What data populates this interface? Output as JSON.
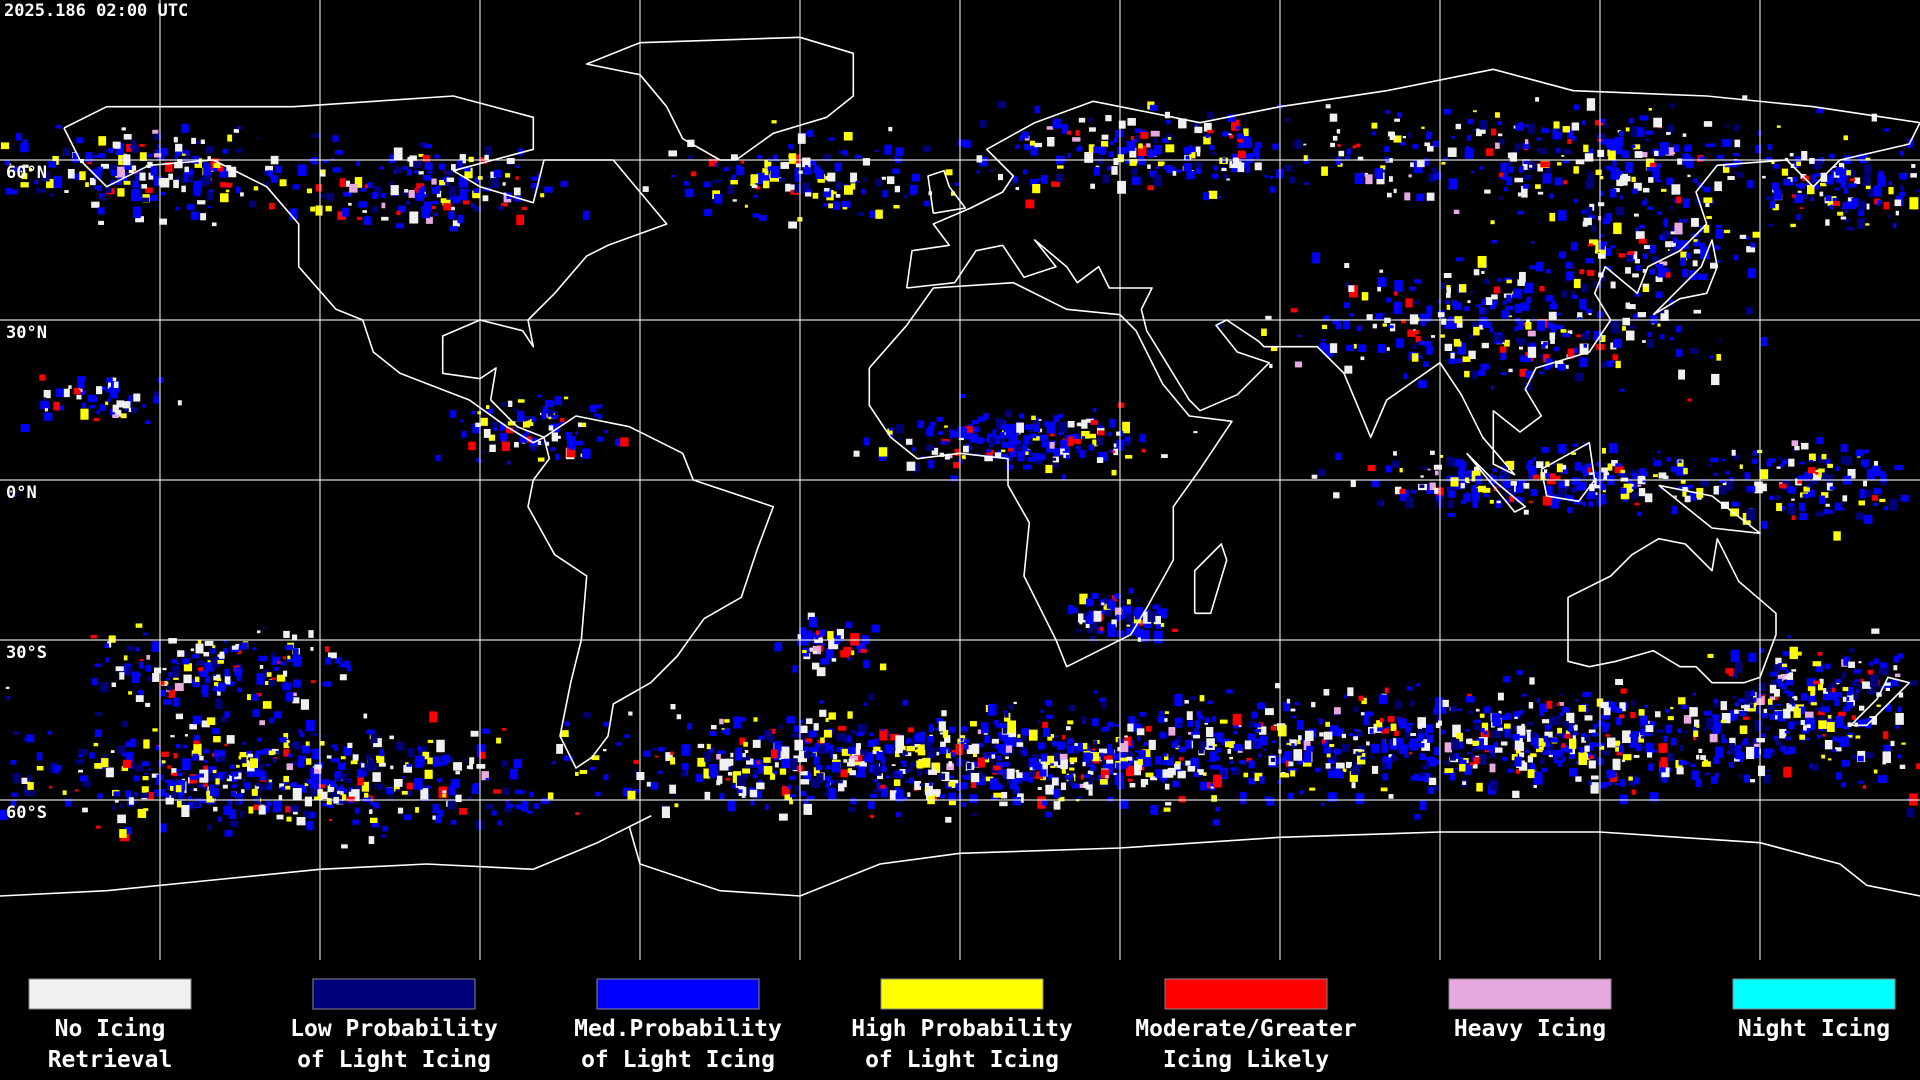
{
  "header": {
    "timestamp": "2025.186 02:00 UTC"
  },
  "map": {
    "latitude_labels": [
      "60°N",
      "30°N",
      "0°N",
      "30°S",
      "60°S"
    ]
  },
  "legend": [
    {
      "label": [
        "No Icing",
        "Retrieval"
      ],
      "color": "#f0f0f0"
    },
    {
      "label": [
        "Low Probability",
        "of Light Icing"
      ],
      "color": "#00007a"
    },
    {
      "label": [
        "Med.Probability",
        "of Light Icing"
      ],
      "color": "#0000ff"
    },
    {
      "label": [
        "High Probability",
        "of Light Icing"
      ],
      "color": "#ffff00"
    },
    {
      "label": [
        "Moderate/Greater",
        "Icing Likely"
      ],
      "color": "#ff0000"
    },
    {
      "label": [
        "Heavy Icing"
      ],
      "color": "#e8a8e0"
    },
    {
      "label": [
        "Night Icing"
      ],
      "color": "#00ffff"
    }
  ]
}
